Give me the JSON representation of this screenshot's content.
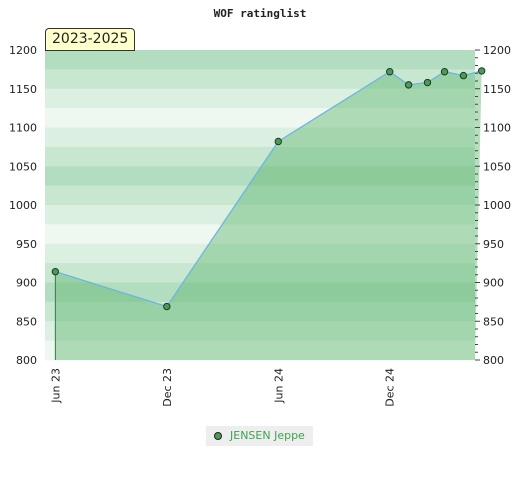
{
  "chart_data": {
    "type": "line",
    "title": "WOF ratinglist",
    "period": "2023-2025",
    "x_ticks": [
      "Jun 23",
      "Dec 23",
      "Jun 24",
      "Dec 24"
    ],
    "y_ticks": [
      800,
      850,
      900,
      950,
      1000,
      1050,
      1100,
      1150,
      1200
    ],
    "ylim": [
      800,
      1200
    ],
    "xlim": [
      "2023-05-15",
      "2025-04-20"
    ],
    "grid": true,
    "legend_position": "bottom",
    "series": [
      {
        "name": "JENSEN Jeppe",
        "color": "#6cb6e0",
        "marker_color": "#4c9a5a",
        "points": [
          {
            "x": "2023-06-01",
            "y": 914
          },
          {
            "x": "2023-12-01",
            "y": 869
          },
          {
            "x": "2024-06-01",
            "y": 1082
          },
          {
            "x": "2024-12-01",
            "y": 1172
          },
          {
            "x": "2025-01-01",
            "y": 1155
          },
          {
            "x": "2025-02-01",
            "y": 1158
          },
          {
            "x": "2025-03-01",
            "y": 1172
          },
          {
            "x": "2025-04-01",
            "y": 1167
          },
          {
            "x": "2025-05-01",
            "y": 1173
          }
        ]
      }
    ]
  }
}
